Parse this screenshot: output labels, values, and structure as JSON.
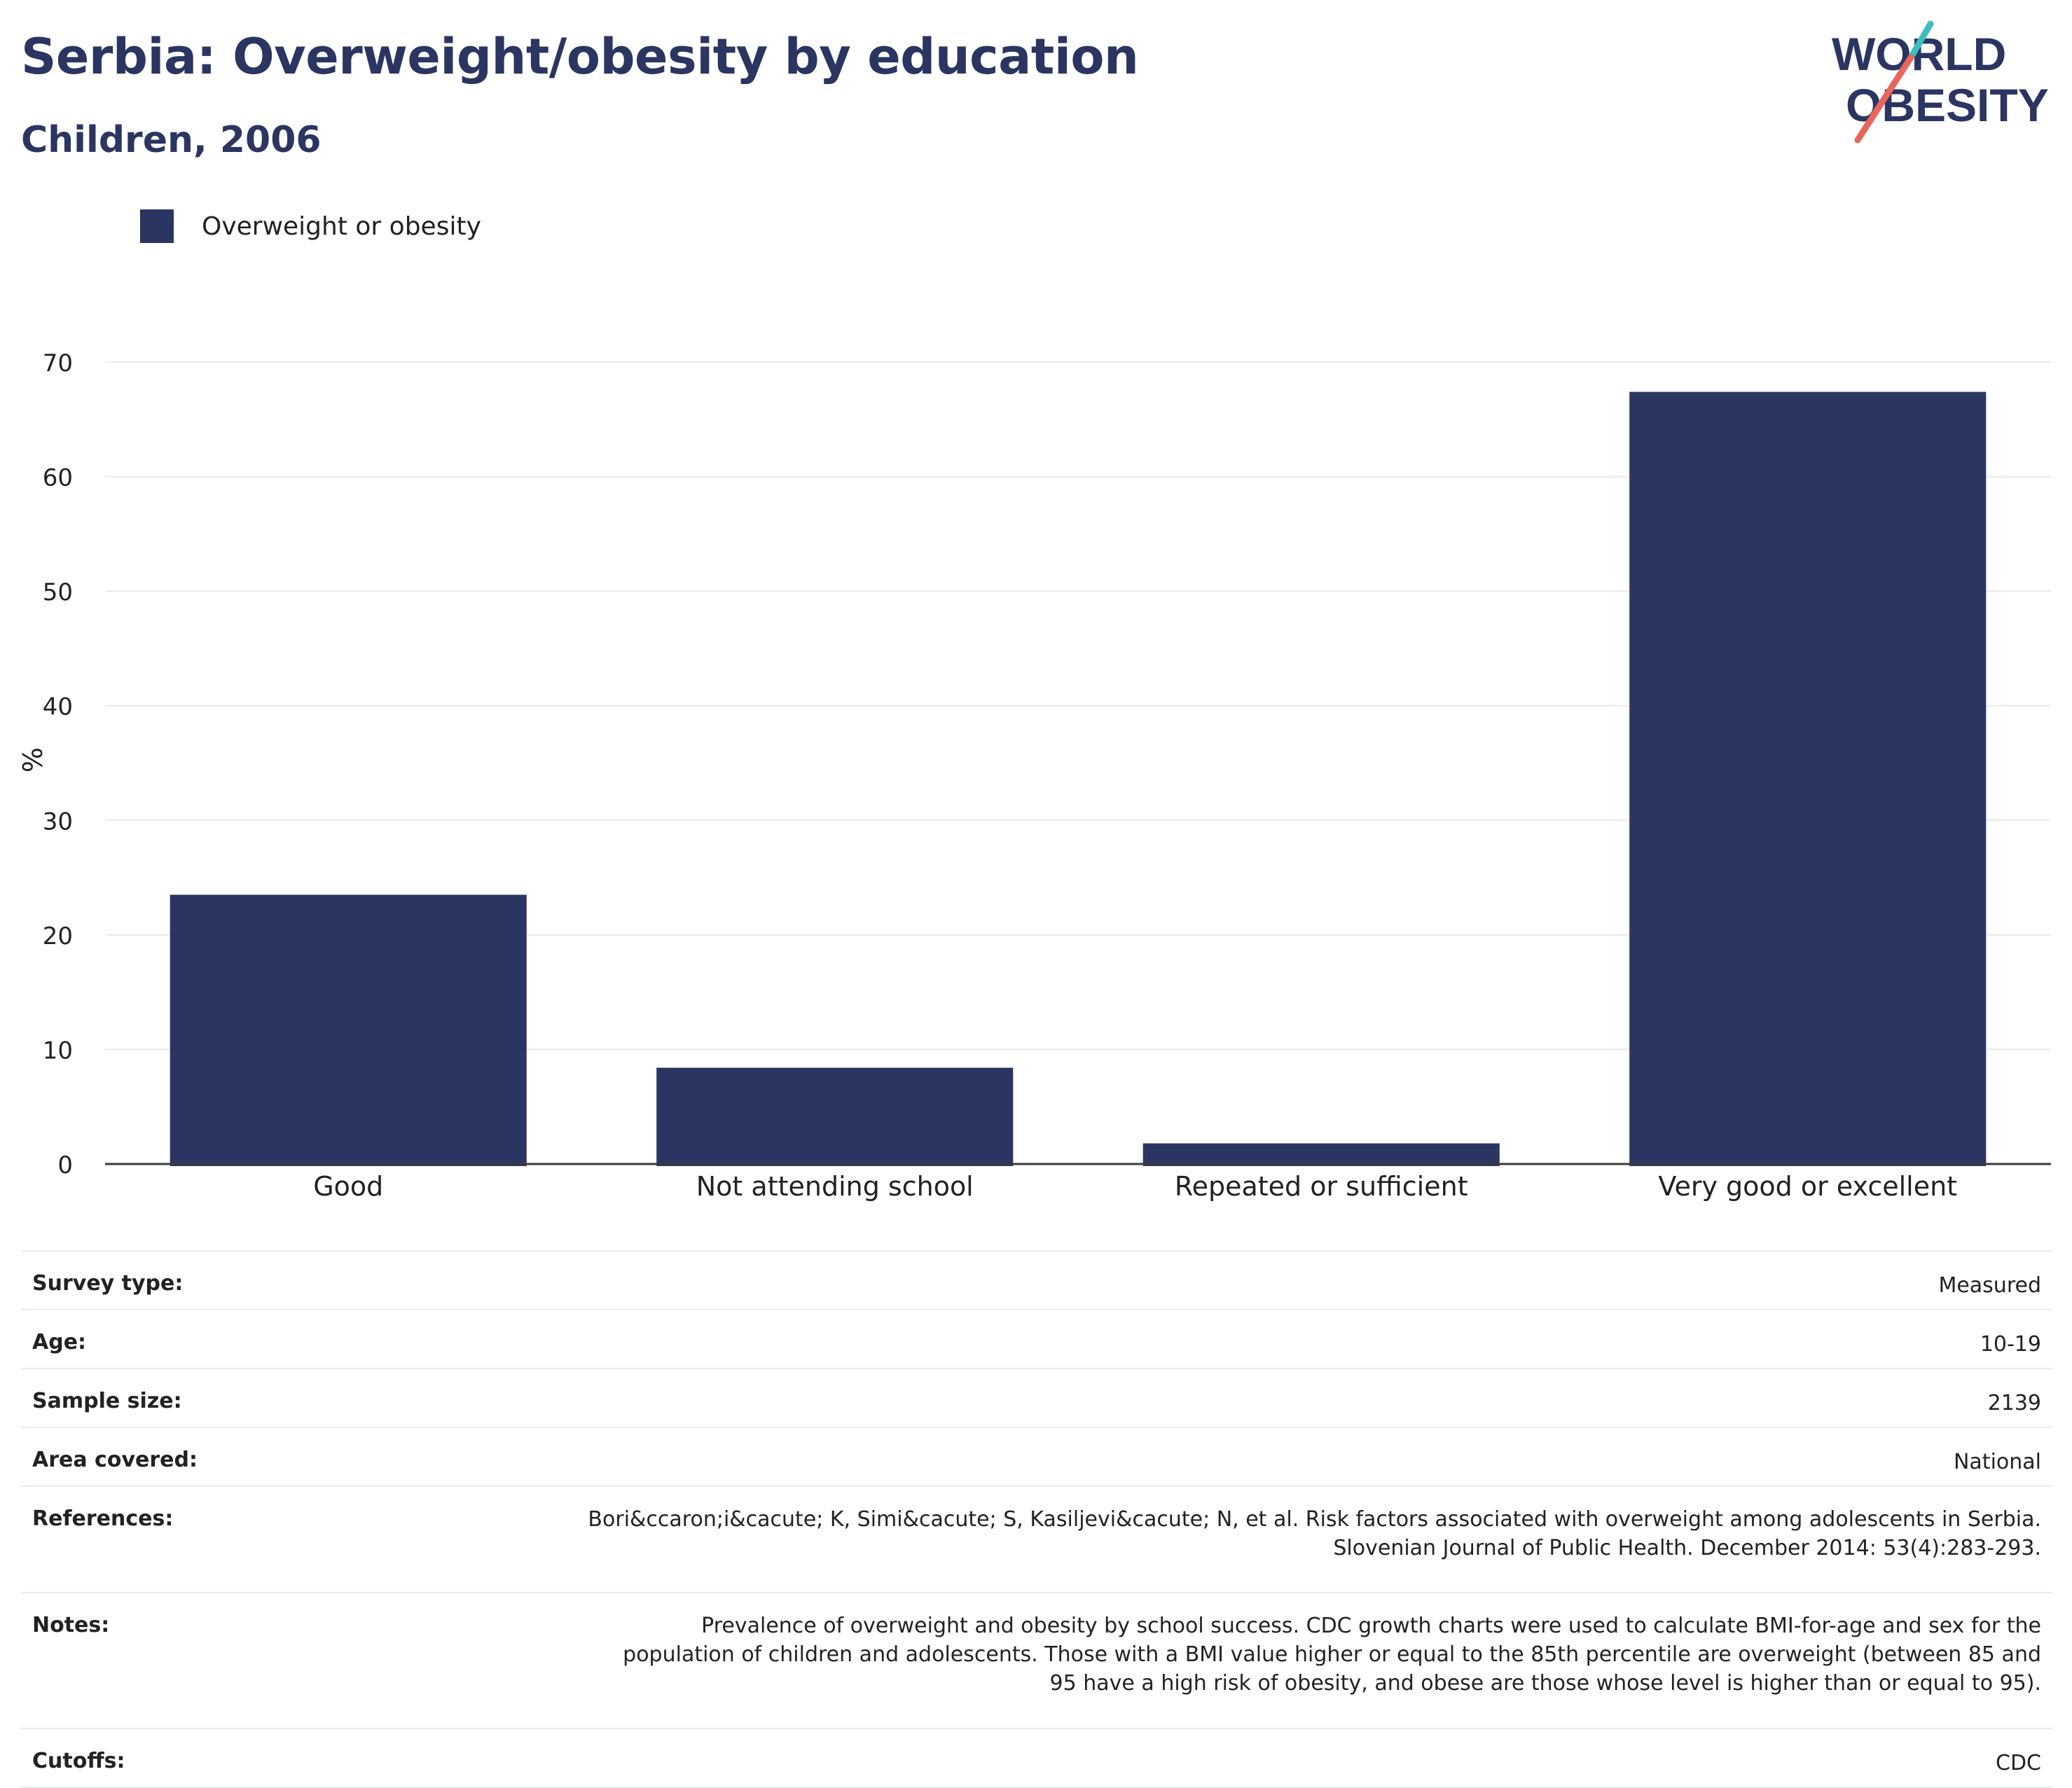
{
  "header": {
    "title": "Serbia: Overweight/obesity by education",
    "subtitle": "Children, 2006"
  },
  "logo": {
    "line1": "WORLD",
    "line2": "OBESITY",
    "colors": {
      "text": "#2a3561",
      "teal": "#3bbfbf",
      "coral": "#e8665a"
    }
  },
  "legend": {
    "label": "Overweight or obesity",
    "color": "#2a3561"
  },
  "chart_data": {
    "type": "bar",
    "categories": [
      "Good",
      "Not attending school",
      "Repeated or sufficient",
      "Very good or excellent"
    ],
    "series": [
      {
        "name": "Overweight or obesity",
        "values": [
          23.5,
          8.4,
          1.8,
          67.4
        ],
        "color": "#2a3561"
      }
    ],
    "ylabel": "%",
    "xlabel": "",
    "ylim": [
      0,
      70
    ],
    "yticks": [
      0,
      10,
      20,
      30,
      40,
      50,
      60,
      70
    ],
    "grid": true,
    "legend_position": "top-left"
  },
  "info": {
    "rows": [
      {
        "key": "Survey type:",
        "value": "Measured"
      },
      {
        "key": "Age:",
        "value": "10-19"
      },
      {
        "key": "Sample size:",
        "value": "2139"
      },
      {
        "key": "Area covered:",
        "value": "National"
      }
    ],
    "references": {
      "key": "References:",
      "value_line1": "Bori&ccaron;i&cacute; K, Simi&cacute; S, Kasiljevi&cacute; N, et al. Risk factors associated with overweight among adolescents in Serbia.",
      "value_line2": "Slovenian Journal of Public Health. December 2014: 53(4):283-293."
    },
    "notes": {
      "key": "Notes:",
      "value_line1": "Prevalence of overweight and obesity by school success. CDC growth charts were used to calculate BMI-for-age and sex for the",
      "value_line2": "population of children and adolescents. Those with a BMI value higher or equal to the 85th percentile are overweight (between 85 and",
      "value_line3": "95 have a high risk of obesity, and obese are those whose level is higher than or equal to 95)."
    },
    "cutoffs": {
      "key": "Cutoffs:",
      "value": "CDC"
    }
  }
}
